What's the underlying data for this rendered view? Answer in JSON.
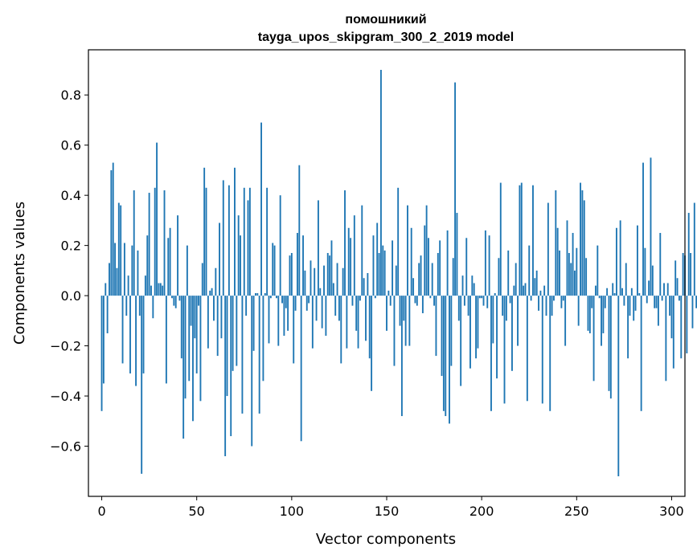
{
  "chart_data": {
    "type": "bar",
    "title": "помошникий",
    "subtitle": "tayga_upos_skipgram_300_2_2019 model",
    "xlabel": "Vector components",
    "ylabel": "Components values",
    "xlim": [
      -7,
      307
    ],
    "ylim": [
      -0.8,
      0.98
    ],
    "xticks": [
      0,
      50,
      100,
      150,
      200,
      250,
      300
    ],
    "yticks": [
      -0.6,
      -0.4,
      -0.2,
      0.0,
      0.2,
      0.4,
      0.6,
      0.8
    ],
    "xtick_labels": [
      "0",
      "50",
      "100",
      "150",
      "200",
      "250",
      "300"
    ],
    "ytick_labels": [
      "−0.6",
      "−0.4",
      "−0.2",
      "0.0",
      "0.2",
      "0.4",
      "0.6",
      "0.8"
    ],
    "grid": false,
    "color": "#1f77b4",
    "values": [
      -0.46,
      -0.35,
      0.05,
      -0.15,
      0.13,
      0.5,
      0.53,
      0.21,
      0.11,
      0.37,
      0.36,
      -0.27,
      0.21,
      -0.08,
      0.08,
      -0.31,
      0.2,
      0.42,
      -0.36,
      0.18,
      -0.08,
      -0.71,
      -0.31,
      0.08,
      0.24,
      0.41,
      0.04,
      -0.09,
      0.43,
      0.61,
      0.05,
      0.05,
      0.04,
      0.42,
      -0.35,
      0.23,
      0.27,
      -0.01,
      -0.04,
      -0.05,
      0.32,
      -0.02,
      -0.25,
      -0.57,
      -0.41,
      0.2,
      -0.34,
      -0.12,
      -0.5,
      -0.17,
      -0.31,
      -0.04,
      -0.42,
      0.13,
      0.51,
      0.43,
      -0.21,
      0.02,
      0.03,
      -0.1,
      0.11,
      -0.24,
      0.29,
      -0.17,
      0.46,
      -0.64,
      -0.4,
      0.44,
      -0.56,
      -0.3,
      0.51,
      -0.28,
      0.32,
      0.24,
      -0.47,
      0.43,
      -0.08,
      0.38,
      0.43,
      -0.6,
      -0.22,
      0.01,
      0.01,
      -0.47,
      0.69,
      -0.34,
      0.01,
      0.43,
      -0.19,
      -0.01,
      0.21,
      0.2,
      -0.01,
      -0.2,
      0.4,
      -0.03,
      -0.16,
      -0.05,
      -0.14,
      0.16,
      0.17,
      -0.27,
      -0.06,
      0.25,
      0.52,
      -0.58,
      0.24,
      0.1,
      -0.06,
      -0.03,
      0.14,
      -0.21,
      0.11,
      -0.1,
      0.38,
      0.03,
      -0.13,
      0.12,
      -0.16,
      0.17,
      0.16,
      0.22,
      0.05,
      -0.08,
      0.13,
      -0.1,
      -0.27,
      0.11,
      0.42,
      -0.21,
      0.27,
      0.23,
      -0.04,
      0.32,
      -0.14,
      -0.21,
      -0.02,
      0.36,
      0.07,
      -0.18,
      0.09,
      -0.25,
      -0.38,
      0.24,
      -0.01,
      0.29,
      0.17,
      0.9,
      0.2,
      0.18,
      -0.14,
      0.02,
      -0.04,
      0.22,
      -0.28,
      0.12,
      0.43,
      -0.12,
      -0.48,
      -0.1,
      -0.2,
      0.36,
      -0.2,
      0.27,
      0.07,
      -0.03,
      -0.04,
      0.13,
      0.16,
      -0.07,
      0.28,
      0.36,
      0.23,
      -0.01,
      0.13,
      -0.04,
      -0.24,
      0.17,
      0.22,
      -0.32,
      -0.46,
      -0.48,
      0.26,
      -0.51,
      -0.28,
      0.15,
      0.85,
      0.33,
      -0.1,
      -0.36,
      0.08,
      -0.04,
      0.23,
      -0.08,
      -0.29,
      0.08,
      0.05,
      -0.25,
      -0.21,
      -0.01,
      -0.01,
      -0.04,
      0.26,
      -0.05,
      0.24,
      -0.46,
      -0.19,
      0.01,
      -0.33,
      0.15,
      0.45,
      -0.08,
      -0.43,
      -0.1,
      0.18,
      -0.03,
      -0.3,
      0.04,
      0.13,
      -0.2,
      0.44,
      0.45,
      0.04,
      0.05,
      -0.42,
      0.2,
      -0.02,
      0.44,
      0.07,
      0.1,
      -0.06,
      0.02,
      -0.43,
      0.04,
      -0.08,
      0.37,
      -0.46,
      -0.08,
      -0.02,
      0.42,
      0.27,
      0.18,
      -0.05,
      -0.02,
      -0.2,
      0.3,
      0.17,
      0.13,
      0.25,
      0.1,
      0.19,
      -0.12,
      0.45,
      0.42,
      0.38,
      0.15,
      -0.14,
      -0.15,
      -0.05,
      -0.34,
      0.04,
      0.2,
      -0.01,
      -0.2,
      -0.15,
      -0.05,
      0.03,
      -0.38,
      -0.41,
      0.05,
      0.01,
      0.27,
      -0.72,
      0.3,
      0.03,
      -0.04,
      0.13,
      -0.25,
      -0.08,
      0.03,
      -0.1,
      -0.06,
      0.28,
      0.01,
      -0.46,
      0.53,
      0.19,
      -0.03,
      0.06,
      0.55,
      0.12,
      -0.05,
      -0.05,
      -0.12,
      0.25,
      -0.02,
      0.05,
      -0.34,
      0.05,
      -0.08,
      -0.17,
      -0.29,
      0.14,
      0.07,
      -0.02,
      -0.25,
      0.17,
      0.16,
      -0.23,
      0.33,
      0.17,
      -0.13,
      0.37,
      -0.05
    ]
  }
}
